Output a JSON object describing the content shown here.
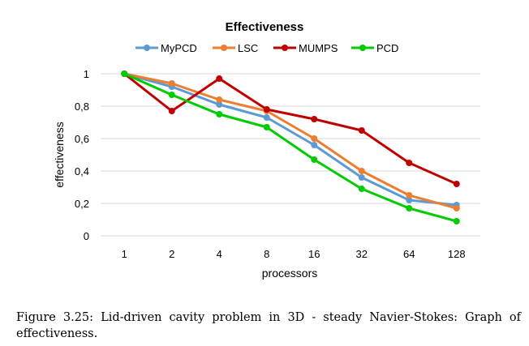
{
  "chart_data": {
    "type": "line",
    "title": "Effectiveness",
    "xlabel": "processors",
    "ylabel": "effectiveness",
    "categories": [
      "1",
      "2",
      "4",
      "8",
      "16",
      "32",
      "64",
      "128"
    ],
    "ylim": [
      0,
      1
    ],
    "yticks": [
      "0",
      "0,2",
      "0,4",
      "0,6",
      "0,8",
      "1"
    ],
    "grid": true,
    "legend_position": "top",
    "series": [
      {
        "name": "MyPCD",
        "color": "#5b9bd5",
        "values": [
          1,
          0.92,
          0.81,
          0.73,
          0.56,
          0.36,
          0.22,
          0.19
        ]
      },
      {
        "name": "LSC",
        "color": "#ed7d31",
        "values": [
          1,
          0.94,
          0.84,
          0.77,
          0.6,
          0.4,
          0.25,
          0.17
        ]
      },
      {
        "name": "MUMPS",
        "color": "#c00000",
        "values": [
          1,
          0.77,
          0.97,
          0.78,
          0.72,
          0.65,
          0.45,
          0.32
        ]
      },
      {
        "name": "PCD",
        "color": "#00cc00",
        "values": [
          1,
          0.87,
          0.75,
          0.67,
          0.47,
          0.29,
          0.17,
          0.09
        ]
      }
    ]
  },
  "caption": "Figure 3.25: Lid-driven cavity problem in 3D - steady Navier-Stokes: Graph of effectiveness."
}
